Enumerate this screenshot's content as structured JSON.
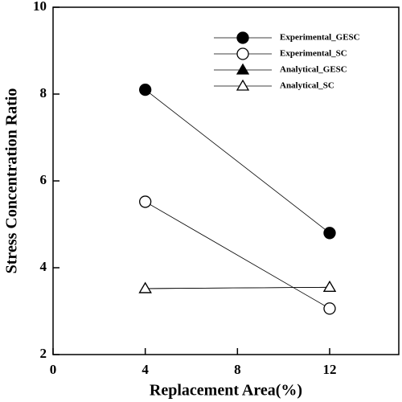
{
  "chart_data": {
    "type": "line",
    "x_label": "Replacement Area(%)",
    "y_label": "Stress Concentration Ratio",
    "x": [
      4,
      12
    ],
    "series": [
      {
        "name": "Experimental_GESC",
        "color": "#000000",
        "marker": "circle",
        "filled": true,
        "values": [
          8.1,
          4.8
        ]
      },
      {
        "name": "Experimental_SC",
        "color": "#000000",
        "marker": "circle",
        "filled": false,
        "values": [
          5.52,
          3.06
        ]
      },
      {
        "name": "Analytical_GESC",
        "color": "#000000",
        "marker": "triangle",
        "filled": true,
        "values": [
          3.52,
          3.55
        ]
      },
      {
        "name": "Analytical_SC",
        "color": "#000000",
        "marker": "triangle",
        "filled": false,
        "values": [
          3.52,
          3.55
        ]
      }
    ],
    "xlim": [
      0,
      15
    ],
    "xticks": [
      0,
      4,
      8,
      12
    ],
    "ylim": [
      2,
      10
    ],
    "yticks": [
      2,
      4,
      6,
      8,
      10
    ],
    "grid": false,
    "legend": "upper right"
  }
}
